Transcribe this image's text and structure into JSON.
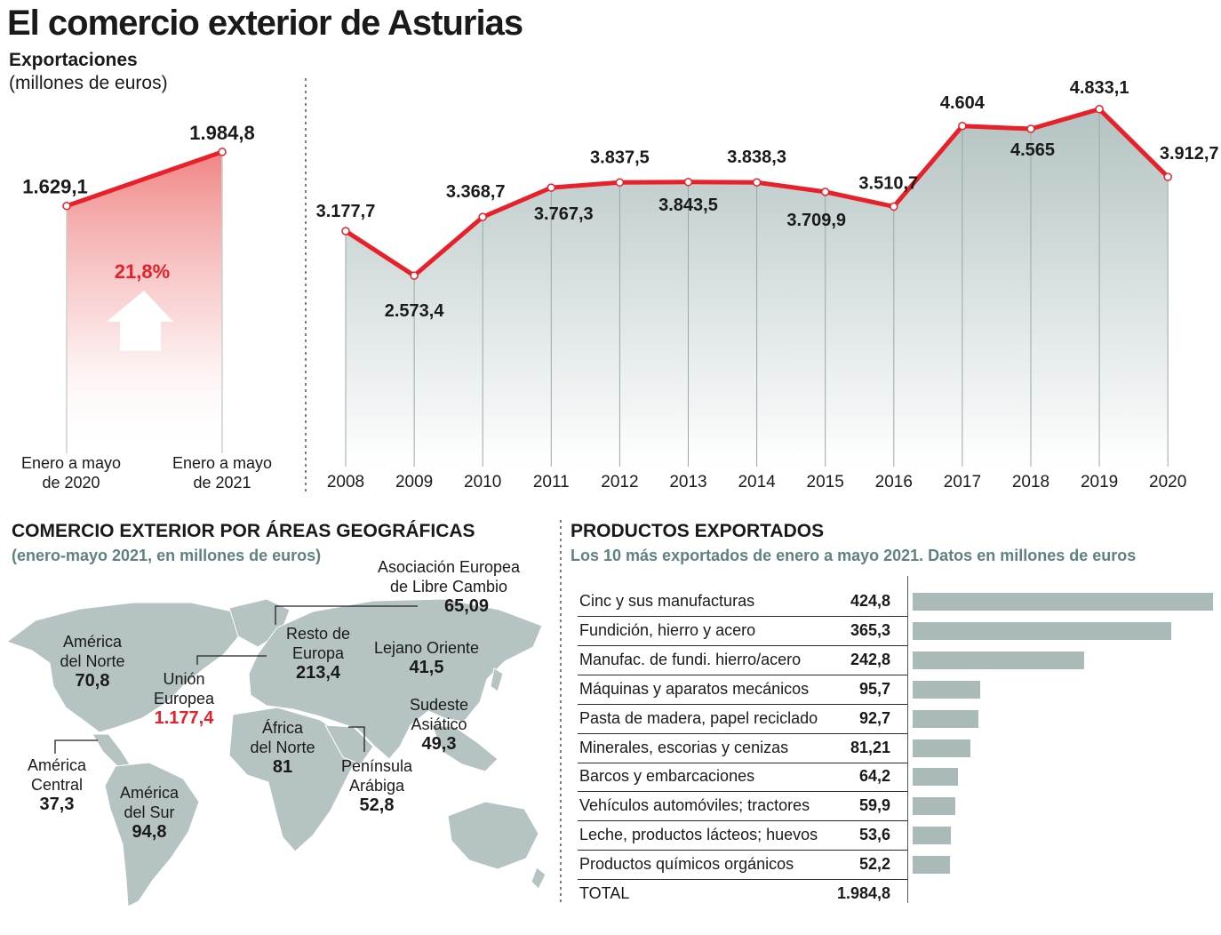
{
  "title": "El comercio exterior de Asturias",
  "subtitle_1": "Exportaciones",
  "subtitle_2": "(millones de euros)",
  "colors": {
    "red": "#e8202a",
    "grey": "#a9bab9",
    "teal": "#5f8281"
  },
  "chart_data": [
    {
      "type": "area",
      "title": "Exportaciones enero a mayo",
      "categories": [
        "Enero a mayo de 2020",
        "Enero a mayo de 2021"
      ],
      "values": [
        1629.1,
        1984.8
      ],
      "value_labels": [
        "1.629,1",
        "1.984,8"
      ],
      "x_labels": [
        [
          "Enero a mayo",
          "de 2020"
        ],
        [
          "Enero a mayo",
          "de 2021"
        ]
      ],
      "change_label": "21,8%",
      "ylim": [
        0,
        2400
      ]
    },
    {
      "type": "line",
      "title": "Exportaciones anuales",
      "categories": [
        "2008",
        "2009",
        "2010",
        "2011",
        "2012",
        "2013",
        "2014",
        "2015",
        "2016",
        "2017",
        "2018",
        "2019",
        "2020"
      ],
      "values": [
        3177.7,
        2573.4,
        3368.7,
        3767.3,
        3837.5,
        3843.5,
        3838.3,
        3709.9,
        3510.7,
        4604,
        4565,
        4833.1,
        3912.7
      ],
      "value_labels": [
        "3.177,7",
        "2.573,4",
        "3.368,7",
        "3.767,3",
        "3.837,5",
        "3.843,5",
        "3.838,3",
        "3.709,9",
        "3.510,7",
        "4.604",
        "4.565",
        "4.833,1",
        "3.912,7"
      ],
      "ylim": [
        0,
        5000
      ]
    },
    {
      "type": "bar",
      "title": "PRODUCTOS EXPORTADOS",
      "subtitle": "Los 10 más exportados de enero a mayo 2021. Datos en millones de euros",
      "categories": [
        "Cinc y sus manufacturas",
        "Fundición, hierro y acero",
        "Manufac. de fundi. hierro/acero",
        "Máquinas y aparatos mecánicos",
        "Pasta de madera, papel reciclado",
        "Minerales, escorias y cenizas",
        "Barcos y embarcaciones",
        "Vehículos automóviles; tractores",
        "Leche, productos lácteos; huevos",
        "Productos químicos orgánicos"
      ],
      "values": [
        424.8,
        365.3,
        242.8,
        95.7,
        92.7,
        81.21,
        64.2,
        59.9,
        53.6,
        52.2
      ],
      "value_labels": [
        "424,8",
        "365,3",
        "242,8",
        "95,7",
        "92,7",
        "81,21",
        "64,2",
        "59,9",
        "53,6",
        "52,2"
      ],
      "total_label": "TOTAL",
      "total_value": "1.984,8",
      "xlim": [
        0,
        424.8
      ]
    }
  ],
  "map": {
    "title": "COMERCIO EXTERIOR POR ÁREAS GEOGRÁFICAS",
    "subtitle": "(enero-mayo 2021, en millones de euros)",
    "areas": {
      "aelc": {
        "l1": "Asociación Europea",
        "l2": "de Libre Cambio",
        "v": "65,09"
      },
      "norteamerica": {
        "l1": "América",
        "l2": "del Norte",
        "v": "70,8"
      },
      "resto_europa": {
        "l1": "Resto de",
        "l2": "Europa",
        "v": "213,4"
      },
      "lejano_oriente": {
        "l1": "Lejano Oriente",
        "v": "41,5"
      },
      "ue": {
        "l1": "Unión",
        "l2": "Europea",
        "v": "1.177,4"
      },
      "sudeste": {
        "l1": "Sudeste",
        "l2": "Asiático",
        "v": "49,3"
      },
      "africa_norte": {
        "l1": "África",
        "l2": "del Norte",
        "v": "81"
      },
      "america_central": {
        "l1": "América",
        "l2": "Central",
        "v": "37,3"
      },
      "peninsula": {
        "l1": "Península",
        "l2": "Arábiga",
        "v": "52,8"
      },
      "america_sur": {
        "l1": "América",
        "l2": "del Sur",
        "v": "94,8"
      }
    }
  }
}
